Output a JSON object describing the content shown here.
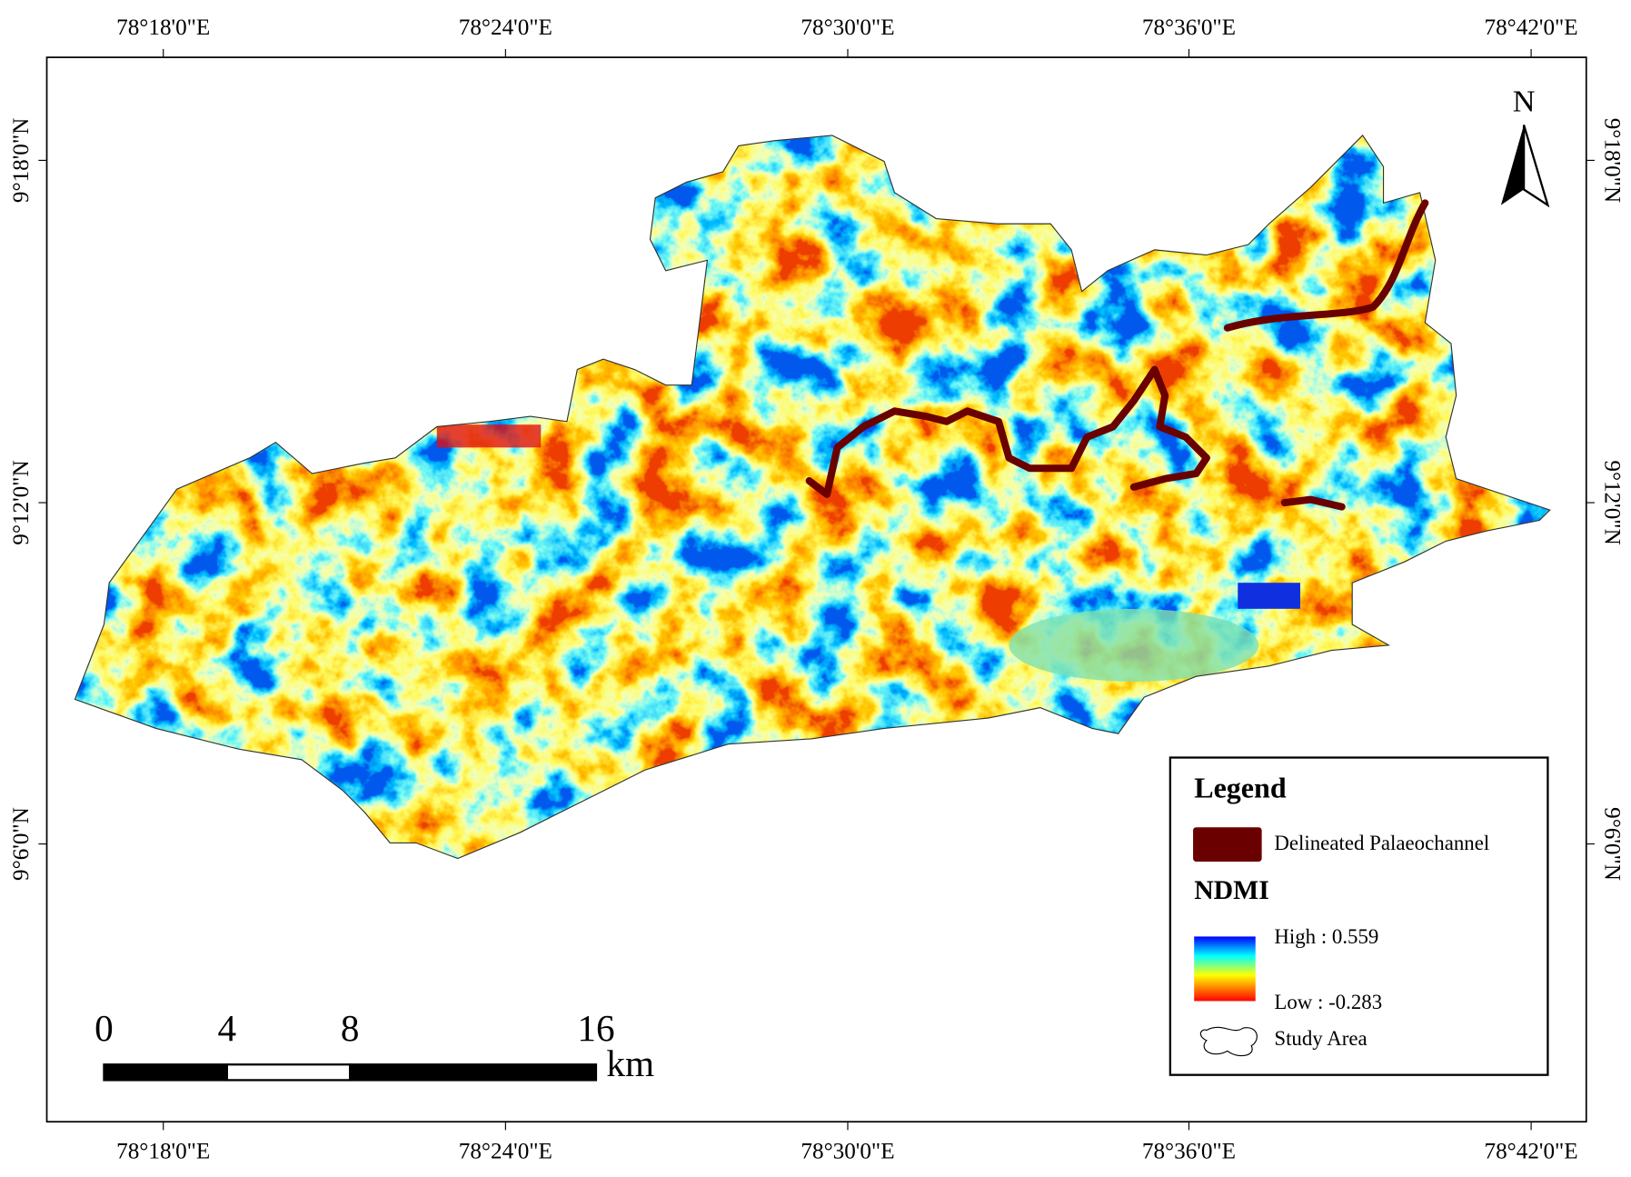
{
  "map": {
    "x_labels_top": [
      "78°18'0\"E",
      "78°24'0\"E",
      "78°30'0\"E",
      "78°36'0\"E",
      "78°42'0\"E"
    ],
    "x_labels_bottom": [
      "78°18'0\"E",
      "78°24'0\"E",
      "78°30'0\"E",
      "78°36'0\"E",
      "78°42'0\"E"
    ],
    "y_labels_left": [
      "9°18'0\"N",
      "9°12'0\"N",
      "9°6'0\"N"
    ],
    "y_labels_right": [
      "9°18'0\"N",
      "9°12'0\"N",
      "9°6'0\"N"
    ],
    "north": "N",
    "legend": {
      "title": "Legend",
      "palaeochannel": "Delineated Palaeochannel",
      "ndmi_title": "NDMI",
      "high": "High : 0.559",
      "low": "Low : -0.283",
      "study_area": "Study Area"
    },
    "scale_bar": {
      "ticks": [
        0,
        4,
        8,
        16
      ],
      "unit": "km"
    }
  }
}
